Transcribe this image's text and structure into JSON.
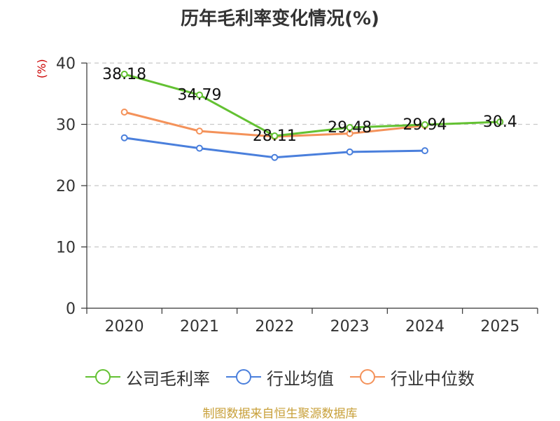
{
  "chart_data": {
    "type": "line",
    "title": "历年毛利率变化情况(%)",
    "unit_label": "(%)",
    "categories": [
      "2020",
      "2021",
      "2022",
      "2023",
      "2024",
      "2025"
    ],
    "ylim": [
      0,
      40
    ],
    "yticks": [
      0,
      10,
      20,
      30,
      40
    ],
    "grid": true,
    "legend_position": "bottom",
    "series": [
      {
        "name": "公司毛利率",
        "color": "#63c132",
        "values": [
          38.18,
          34.79,
          28.11,
          29.48,
          29.94,
          30.4
        ],
        "labels": [
          "38.18",
          "34.79",
          "28.11",
          "29.48",
          "29.94",
          "30.4"
        ]
      },
      {
        "name": "行业均值",
        "color": "#4a7fdc",
        "values": [
          27.8,
          26.1,
          24.6,
          25.5,
          25.7,
          null
        ]
      },
      {
        "name": "行业中位数",
        "color": "#f4925a",
        "values": [
          32.0,
          28.9,
          28.0,
          28.5,
          29.8,
          null
        ]
      }
    ]
  },
  "source_text": "制图数据来自恒生聚源数据库"
}
